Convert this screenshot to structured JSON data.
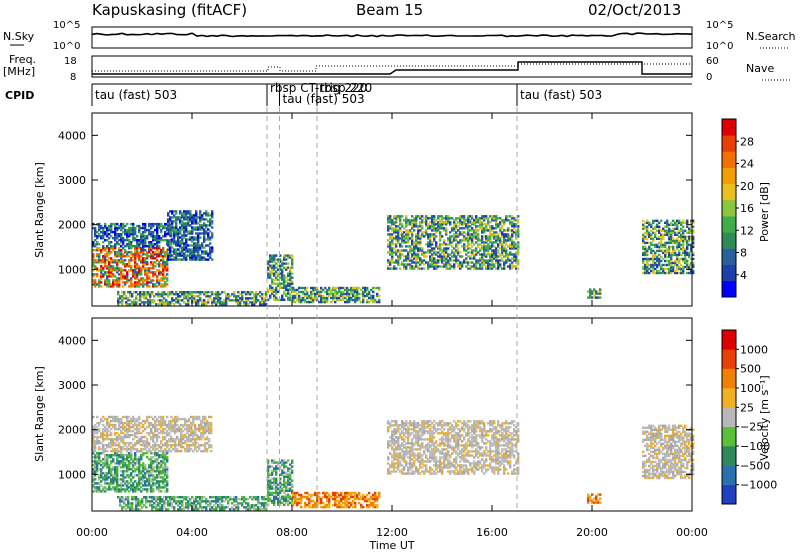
{
  "header": {
    "station": "Kapuskasing (fitACF)",
    "beam": "Beam 15",
    "date": "02/Oct/2013"
  },
  "side_labels": {
    "nsky": "N.Sky",
    "nsearch": "N.Search",
    "freq_top": "Freq.",
    "freq_unit": "[MHz]",
    "nave": "Nave",
    "cpid": "CPID",
    "nsky_hi": "10^5",
    "nsky_lo": "10^0",
    "nsearch_hi": "10^5",
    "nsearch_lo": "10^0",
    "freq_hi": "18",
    "freq_lo": "8",
    "nave_hi": "60",
    "nave_lo": "0"
  },
  "cpid_segments": [
    {
      "start_hour": 0.0,
      "label": "tau (fast) 503"
    },
    {
      "start_hour": 7.0,
      "label": "rbsp CT-rbsp 220"
    },
    {
      "start_hour": 7.5,
      "label": "tau (fast) 503"
    },
    {
      "start_hour": 9.0,
      "label": "trig 220"
    },
    {
      "start_hour": 17.0,
      "label": "tau (fast) 503"
    }
  ],
  "chart_data": [
    {
      "type": "heatmap",
      "name": "power",
      "ylabel": "Slant Range [km]",
      "ylim": [
        180,
        4500
      ],
      "yticks": [
        "1000",
        "2000",
        "3000",
        "4000"
      ],
      "xlabel": "Time UT",
      "xlim": [
        0,
        24
      ],
      "xticks": [
        "00:00",
        "04:00",
        "08:00",
        "12:00",
        "16:00",
        "20:00",
        "00:00"
      ],
      "colorbar": {
        "label": "Power [dB]",
        "ticks": [
          "28",
          "24",
          "20",
          "16",
          "12",
          "8",
          "4"
        ],
        "colors": [
          "#0000ff",
          "#1e3ea8",
          "#2a5f9e",
          "#2f8a5a",
          "#3fae4a",
          "#8cc63f",
          "#e8c020",
          "#f0a000",
          "#f07000",
          "#e84000",
          "#dd0000"
        ]
      },
      "regions": [
        {
          "t": [
            0.0,
            3.0
          ],
          "r": [
            600,
            1500
          ],
          "level": "high"
        },
        {
          "t": [
            0.0,
            3.2
          ],
          "r": [
            1500,
            2000
          ],
          "level": "low"
        },
        {
          "t": [
            3.0,
            4.8
          ],
          "r": [
            1200,
            2300
          ],
          "level": "low"
        },
        {
          "t": [
            1.0,
            7.0
          ],
          "r": [
            200,
            500
          ],
          "level": "medium"
        },
        {
          "t": [
            7.0,
            8.0
          ],
          "r": [
            300,
            1300
          ],
          "level": "medium"
        },
        {
          "t": [
            8.0,
            11.5
          ],
          "r": [
            250,
            600
          ],
          "level": "medium"
        },
        {
          "t": [
            11.8,
            17.0
          ],
          "r": [
            1000,
            2200
          ],
          "level": "medium"
        },
        {
          "t": [
            19.8,
            20.3
          ],
          "r": [
            350,
            550
          ],
          "level": "medium"
        },
        {
          "t": [
            22.0,
            24.0
          ],
          "r": [
            900,
            2100
          ],
          "level": "medium"
        }
      ]
    },
    {
      "type": "heatmap",
      "name": "velocity",
      "ylabel": "Slant Range [km]",
      "ylim": [
        180,
        4500
      ],
      "yticks": [
        "1000",
        "2000",
        "3000",
        "4000"
      ],
      "xlabel": "Time UT",
      "xlim": [
        0,
        24
      ],
      "xticks": [
        "00:00",
        "04:00",
        "08:00",
        "12:00",
        "16:00",
        "20:00",
        "00:00"
      ],
      "colorbar": {
        "label": "Velocity [m s⁻¹]",
        "ticks": [
          "1000",
          "500",
          "100",
          "25",
          "−25",
          "−100",
          "−500",
          "−1000"
        ],
        "colors": [
          "#2040c0",
          "#2a6fae",
          "#2f8a5a",
          "#5bbf3a",
          "#b8b8b8",
          "#f0b020",
          "#f08000",
          "#e84000",
          "#dd0000"
        ]
      },
      "regions": [
        {
          "t": [
            0.0,
            3.0
          ],
          "r": [
            600,
            1500
          ],
          "level": "green"
        },
        {
          "t": [
            0.0,
            4.8
          ],
          "r": [
            1500,
            2300
          ],
          "level": "grey"
        },
        {
          "t": [
            1.0,
            7.0
          ],
          "r": [
            200,
            500
          ],
          "level": "green"
        },
        {
          "t": [
            7.0,
            8.0
          ],
          "r": [
            300,
            1300
          ],
          "level": "green"
        },
        {
          "t": [
            8.0,
            11.5
          ],
          "r": [
            250,
            600
          ],
          "level": "orange"
        },
        {
          "t": [
            11.8,
            17.0
          ],
          "r": [
            1000,
            2200
          ],
          "level": "grey"
        },
        {
          "t": [
            19.8,
            20.3
          ],
          "r": [
            350,
            550
          ],
          "level": "orange"
        },
        {
          "t": [
            22.0,
            24.0
          ],
          "r": [
            900,
            2100
          ],
          "level": "grey"
        }
      ]
    }
  ]
}
